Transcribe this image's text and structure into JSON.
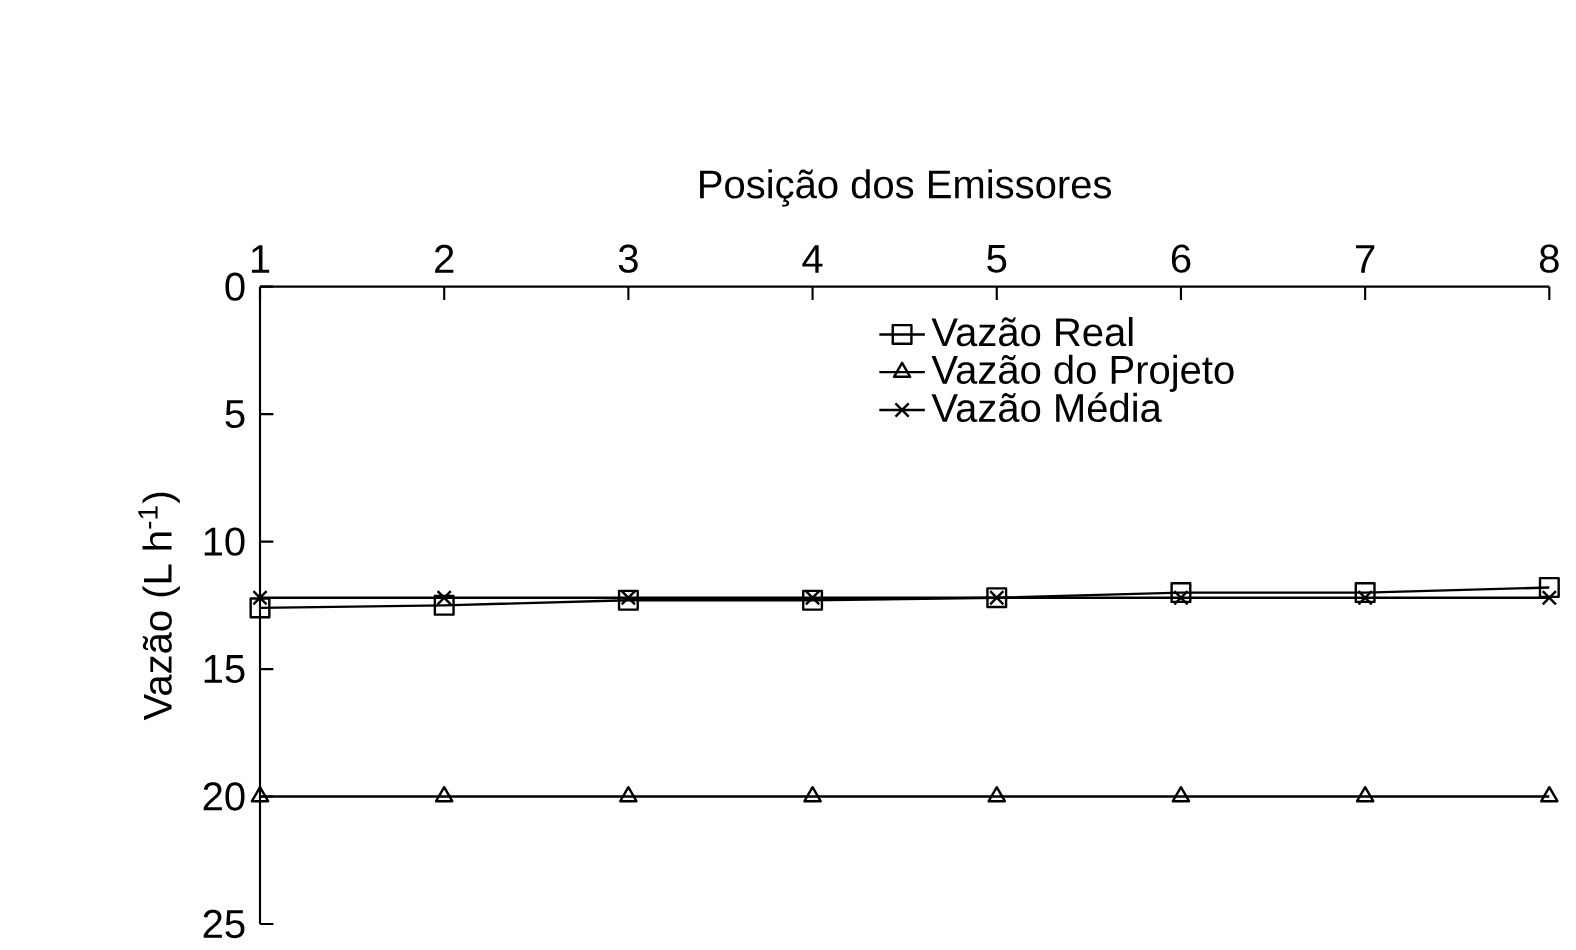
{
  "chart_data": {
    "type": "line",
    "xlabel": "Posição dos Emissores",
    "ylabel": "Vazão (L h$^{-1}$)",
    "x": [
      1,
      2,
      3,
      4,
      5,
      6,
      7,
      8
    ],
    "xlim": [
      1,
      8
    ],
    "xticks": [
      1,
      2,
      3,
      4,
      5,
      6,
      7,
      8
    ],
    "ylim": [
      25,
      0
    ],
    "yticks": [
      0,
      5,
      10,
      15,
      20,
      25
    ],
    "series": [
      {
        "name": "Vazão Real",
        "color": "#000000",
        "marker": "square",
        "values": [
          12.6,
          12.5,
          12.3,
          12.3,
          12.2,
          12.0,
          12.0,
          11.8
        ]
      },
      {
        "name": "Vazão do Projeto",
        "color": "#000000",
        "marker": "triangle",
        "values": [
          20,
          20,
          20,
          20,
          20,
          20,
          20,
          20
        ]
      },
      {
        "name": "Vazão Média",
        "color": "#000000",
        "marker": "cross",
        "values": [
          12.2,
          12.2,
          12.2,
          12.2,
          12.2,
          12.2,
          12.2,
          12.2
        ]
      }
    ],
    "grid": false,
    "legend": "top",
    "line_style": "solid"
  }
}
